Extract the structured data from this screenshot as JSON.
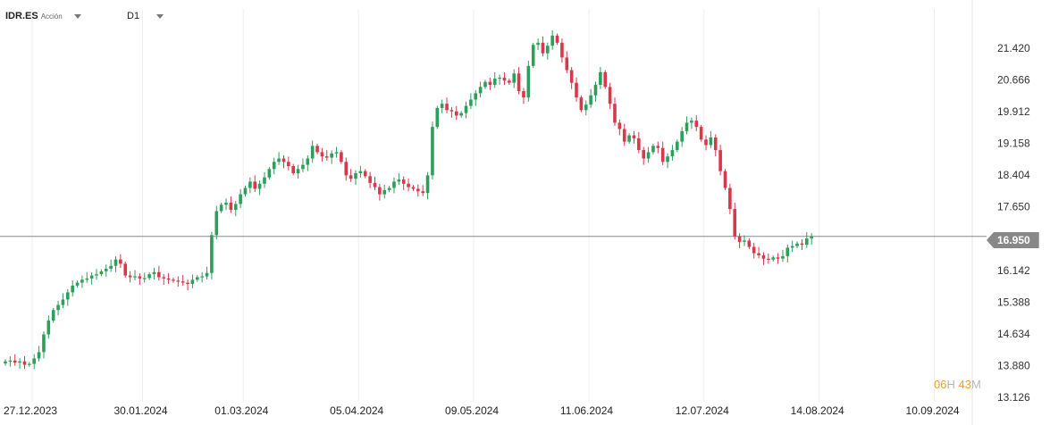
{
  "header": {
    "symbol": "IDR.ES",
    "asset_type": "Acción",
    "timeframe": "D1"
  },
  "timer": {
    "hours": "06",
    "h_unit": "H",
    "minutes": "43",
    "m_unit": "M"
  },
  "colors": {
    "up": "#2e9e5b",
    "down": "#d9374a",
    "grid": "#eeeeee",
    "price_line": "#888888",
    "timer": "#f0a030"
  },
  "chart_data": {
    "type": "candlestick",
    "title": "",
    "xlabel": "",
    "ylabel": "",
    "ylim": [
      13.126,
      21.9
    ],
    "y_ticks": [
      "21.420",
      "20.666",
      "19.912",
      "19.158",
      "18.404",
      "17.650",
      "16.950",
      "16.142",
      "15.388",
      "14.634",
      "13.880",
      "13.126"
    ],
    "x_ticks": [
      "27.12.2023",
      "30.01.2024",
      "01.03.2024",
      "05.04.2024",
      "09.05.2024",
      "11.06.2024",
      "12.07.2024",
      "14.08.2024",
      "10.09.2024"
    ],
    "x_tick_bar_index": [
      0,
      23,
      44,
      68,
      92,
      116,
      140,
      164,
      188
    ],
    "last_price": 16.95,
    "last_price_label": "16.950",
    "close": [
      13.98,
      14.0,
      13.95,
      13.98,
      13.9,
      13.92,
      14.05,
      14.2,
      14.62,
      14.95,
      15.2,
      15.32,
      15.45,
      15.62,
      15.78,
      15.85,
      15.92,
      15.95,
      16.02,
      16.05,
      16.12,
      16.18,
      16.25,
      16.4,
      16.3,
      16.02,
      15.98,
      16.0,
      15.95,
      15.96,
      16.05,
      16.1,
      15.98,
      15.95,
      15.92,
      15.9,
      15.88,
      15.85,
      15.82,
      15.92,
      15.98,
      16.0,
      16.08,
      16.98,
      17.55,
      17.7,
      17.75,
      17.58,
      17.72,
      17.95,
      18.1,
      18.25,
      18.08,
      18.2,
      18.35,
      18.55,
      18.72,
      18.8,
      18.72,
      18.62,
      18.45,
      18.55,
      18.65,
      18.8,
      19.1,
      18.95,
      18.85,
      18.82,
      18.92,
      18.95,
      18.72,
      18.4,
      18.32,
      18.45,
      18.5,
      18.38,
      18.22,
      18.12,
      17.95,
      18.05,
      18.1,
      18.25,
      18.3,
      18.2,
      18.12,
      18.08,
      18.02,
      17.98,
      18.4,
      19.55,
      20.0,
      20.1,
      19.95,
      19.92,
      19.82,
      19.88,
      20.05,
      20.2,
      20.35,
      20.5,
      20.62,
      20.55,
      20.7,
      20.72,
      20.65,
      20.6,
      20.82,
      20.4,
      20.25,
      21.0,
      21.5,
      21.55,
      21.3,
      21.48,
      21.72,
      21.55,
      21.2,
      20.9,
      20.6,
      20.25,
      19.95,
      20.08,
      20.3,
      20.55,
      20.85,
      20.5,
      20.1,
      19.65,
      19.5,
      19.2,
      19.35,
      19.28,
      19.0,
      18.8,
      18.95,
      19.1,
      19.05,
      18.72,
      18.85,
      19.0,
      19.2,
      19.45,
      19.65,
      19.7,
      19.55,
      19.25,
      19.12,
      19.3,
      19.0,
      18.5,
      18.1,
      17.6,
      16.95,
      16.82,
      16.85,
      16.7,
      16.55,
      16.5,
      16.42,
      16.4,
      16.45,
      16.42,
      16.48,
      16.68,
      16.72,
      16.78,
      16.75,
      16.9,
      16.95
    ]
  }
}
